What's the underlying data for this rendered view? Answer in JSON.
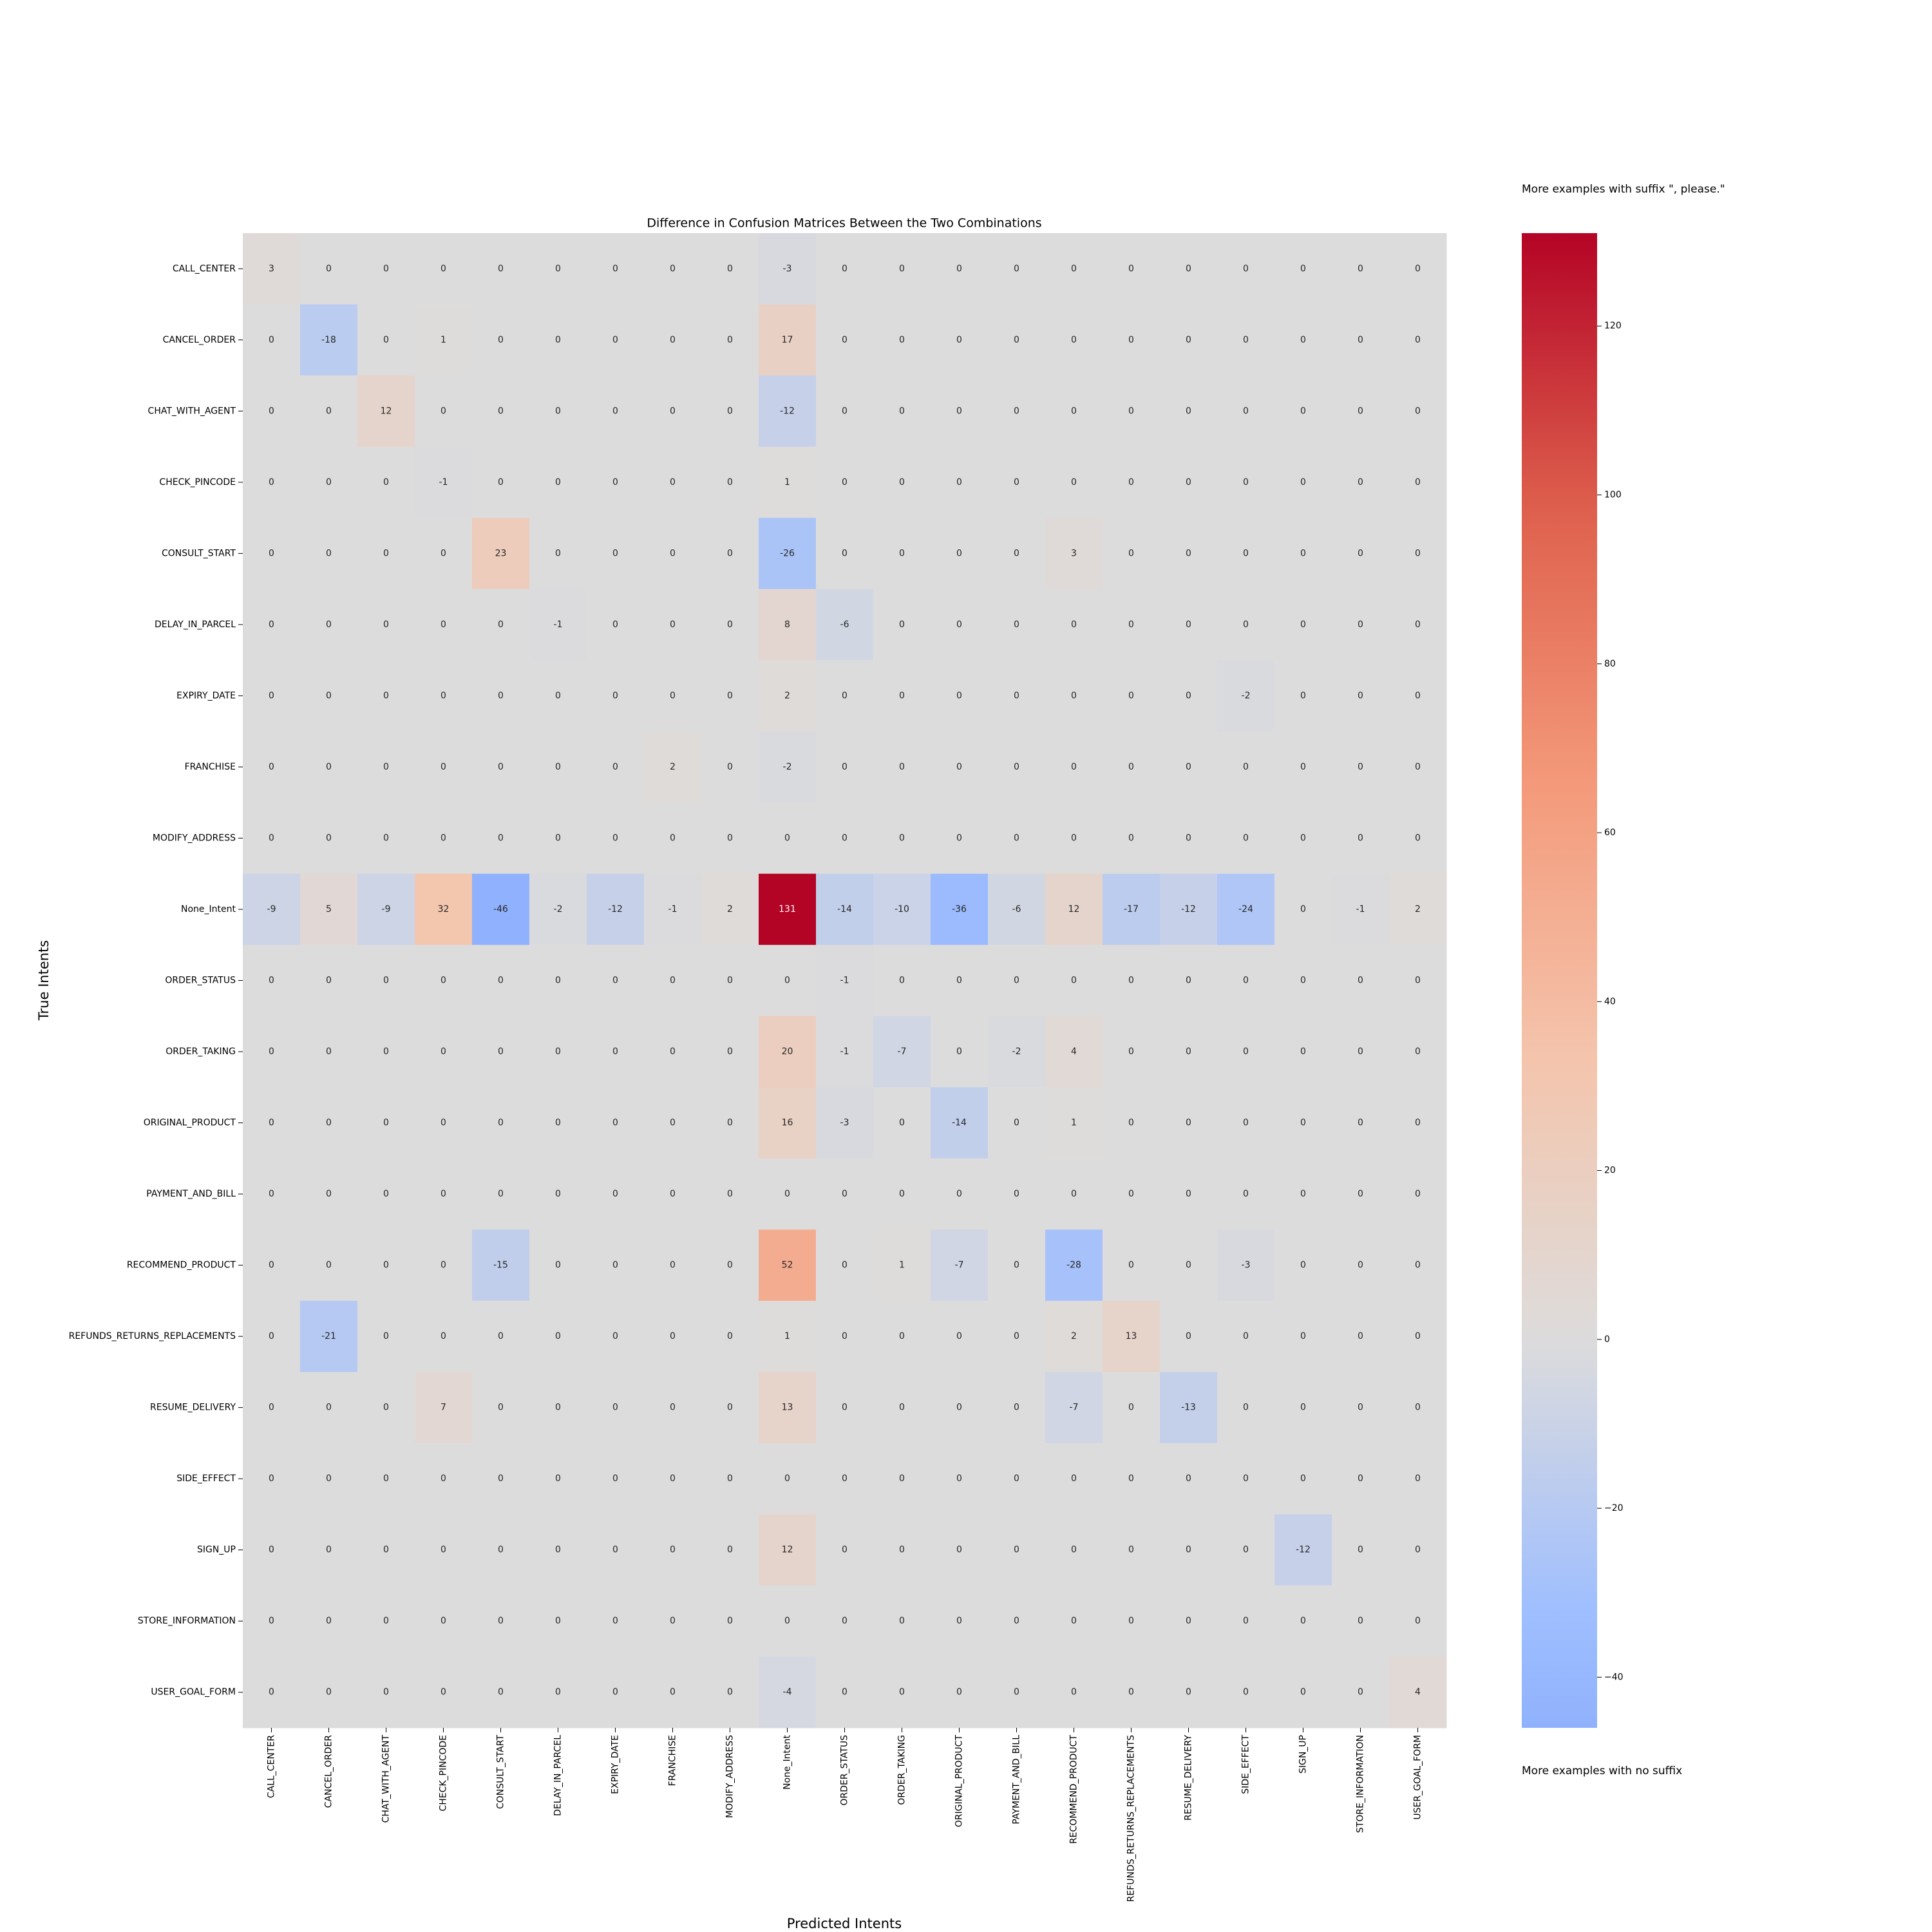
{
  "chart_data": {
    "type": "heatmap",
    "title": "Difference in Confusion Matrices Between the Two Combinations",
    "xlabel": "Predicted Intents",
    "ylabel": "True Intents",
    "colorbar_top_label": "More examples with suffix \", please.\"",
    "colorbar_bottom_label": "More examples with no suffix",
    "x_categories": [
      "CALL_CENTER",
      "CANCEL_ORDER",
      "CHAT_WITH_AGENT",
      "CHECK_PINCODE",
      "CONSULT_START",
      "DELAY_IN_PARCEL",
      "EXPIRY_DATE",
      "FRANCHISE",
      "MODIFY_ADDRESS",
      "None_Intent",
      "ORDER_STATUS",
      "ORDER_TAKING",
      "ORIGINAL_PRODUCT",
      "PAYMENT_AND_BILL",
      "RECOMMEND_PRODUCT",
      "REFUNDS_RETURNS_REPLACEMENTS",
      "RESUME_DELIVERY",
      "SIDE_EFFECT",
      "SIGN_UP",
      "STORE_INFORMATION",
      "USER_GOAL_FORM"
    ],
    "y_categories": [
      "CALL_CENTER",
      "CANCEL_ORDER",
      "CHAT_WITH_AGENT",
      "CHECK_PINCODE",
      "CONSULT_START",
      "DELAY_IN_PARCEL",
      "EXPIRY_DATE",
      "FRANCHISE",
      "MODIFY_ADDRESS",
      "None_Intent",
      "ORDER_STATUS",
      "ORDER_TAKING",
      "ORIGINAL_PRODUCT",
      "PAYMENT_AND_BILL",
      "RECOMMEND_PRODUCT",
      "REFUNDS_RETURNS_REPLACEMENTS",
      "RESUME_DELIVERY",
      "SIDE_EFFECT",
      "SIGN_UP",
      "STORE_INFORMATION",
      "USER_GOAL_FORM"
    ],
    "values": [
      [
        3,
        0,
        0,
        0,
        0,
        0,
        0,
        0,
        0,
        -3,
        0,
        0,
        0,
        0,
        0,
        0,
        0,
        0,
        0,
        0,
        0
      ],
      [
        0,
        -18,
        0,
        1,
        0,
        0,
        0,
        0,
        0,
        17,
        0,
        0,
        0,
        0,
        0,
        0,
        0,
        0,
        0,
        0,
        0
      ],
      [
        0,
        0,
        12,
        0,
        0,
        0,
        0,
        0,
        0,
        -12,
        0,
        0,
        0,
        0,
        0,
        0,
        0,
        0,
        0,
        0,
        0
      ],
      [
        0,
        0,
        0,
        -1,
        0,
        0,
        0,
        0,
        0,
        1,
        0,
        0,
        0,
        0,
        0,
        0,
        0,
        0,
        0,
        0,
        0
      ],
      [
        0,
        0,
        0,
        0,
        23,
        0,
        0,
        0,
        0,
        -26,
        0,
        0,
        0,
        0,
        3,
        0,
        0,
        0,
        0,
        0,
        0
      ],
      [
        0,
        0,
        0,
        0,
        0,
        -1,
        0,
        0,
        0,
        8,
        -6,
        0,
        0,
        0,
        0,
        0,
        0,
        0,
        0,
        0,
        0
      ],
      [
        0,
        0,
        0,
        0,
        0,
        0,
        0,
        0,
        0,
        2,
        0,
        0,
        0,
        0,
        0,
        0,
        0,
        -2,
        0,
        0,
        0
      ],
      [
        0,
        0,
        0,
        0,
        0,
        0,
        0,
        2,
        0,
        -2,
        0,
        0,
        0,
        0,
        0,
        0,
        0,
        0,
        0,
        0,
        0
      ],
      [
        0,
        0,
        0,
        0,
        0,
        0,
        0,
        0,
        0,
        0,
        0,
        0,
        0,
        0,
        0,
        0,
        0,
        0,
        0,
        0,
        0
      ],
      [
        -9,
        5,
        -9,
        32,
        -46,
        -2,
        -12,
        -1,
        2,
        131,
        -14,
        -10,
        -36,
        -6,
        12,
        -17,
        -12,
        -24,
        0,
        -1,
        2
      ],
      [
        0,
        0,
        0,
        0,
        0,
        0,
        0,
        0,
        0,
        0,
        -1,
        0,
        0,
        0,
        0,
        0,
        0,
        0,
        0,
        0,
        0
      ],
      [
        0,
        0,
        0,
        0,
        0,
        0,
        0,
        0,
        0,
        20,
        -1,
        -7,
        0,
        -2,
        4,
        0,
        0,
        0,
        0,
        0,
        0
      ],
      [
        0,
        0,
        0,
        0,
        0,
        0,
        0,
        0,
        0,
        16,
        -3,
        0,
        -14,
        0,
        1,
        0,
        0,
        0,
        0,
        0,
        0
      ],
      [
        0,
        0,
        0,
        0,
        0,
        0,
        0,
        0,
        0,
        0,
        0,
        0,
        0,
        0,
        0,
        0,
        0,
        0,
        0,
        0,
        0
      ],
      [
        0,
        0,
        0,
        0,
        -15,
        0,
        0,
        0,
        0,
        52,
        0,
        1,
        -7,
        0,
        -28,
        0,
        0,
        -3,
        0,
        0,
        0
      ],
      [
        0,
        -21,
        0,
        0,
        0,
        0,
        0,
        0,
        0,
        1,
        0,
        0,
        0,
        0,
        2,
        13,
        0,
        0,
        0,
        0,
        0
      ],
      [
        0,
        0,
        0,
        7,
        0,
        0,
        0,
        0,
        0,
        13,
        0,
        0,
        0,
        0,
        -7,
        0,
        -13,
        0,
        0,
        0,
        0
      ],
      [
        0,
        0,
        0,
        0,
        0,
        0,
        0,
        0,
        0,
        0,
        0,
        0,
        0,
        0,
        0,
        0,
        0,
        0,
        0,
        0,
        0
      ],
      [
        0,
        0,
        0,
        0,
        0,
        0,
        0,
        0,
        0,
        12,
        0,
        0,
        0,
        0,
        0,
        0,
        0,
        0,
        -12,
        0,
        0
      ],
      [
        0,
        0,
        0,
        0,
        0,
        0,
        0,
        0,
        0,
        0,
        0,
        0,
        0,
        0,
        0,
        0,
        0,
        0,
        0,
        0,
        0
      ],
      [
        0,
        0,
        0,
        0,
        0,
        0,
        0,
        0,
        0,
        -4,
        0,
        0,
        0,
        0,
        0,
        0,
        0,
        0,
        0,
        0,
        4
      ]
    ],
    "colormap": [
      "#3b4cc0",
      "#5977e3",
      "#7b9ff9",
      "#9ebeff",
      "#dddcdc",
      "#f4c5ad",
      "#f49a7b",
      "#de604d",
      "#b40426"
    ],
    "color_center": 0,
    "clim": [
      -46,
      131
    ],
    "cticks": [
      {
        "value": -40,
        "label": "−40"
      },
      {
        "value": -20,
        "label": "−20"
      },
      0,
      20,
      40,
      60,
      80,
      100,
      120
    ]
  }
}
